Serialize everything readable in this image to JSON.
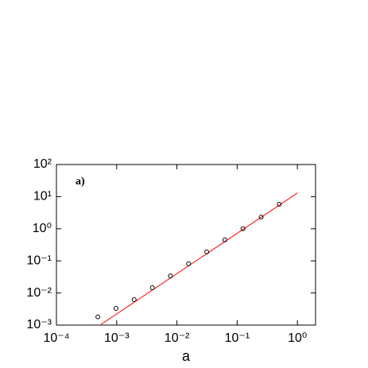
{
  "chart_data": {
    "type": "scatter",
    "x_label": "a",
    "annotation": "a)",
    "log_x": true,
    "log_y": true,
    "xlim": [
      0.0001,
      2
    ],
    "ylim": [
      0.001,
      100
    ],
    "xticks": [
      {
        "value": 0.0001,
        "label": "10⁻⁴"
      },
      {
        "value": 0.001,
        "label": "10⁻³"
      },
      {
        "value": 0.01,
        "label": "10⁻²"
      },
      {
        "value": 0.1,
        "label": "10⁻¹"
      },
      {
        "value": 1,
        "label": "10⁰"
      }
    ],
    "yticks": [
      {
        "value": 0.001,
        "label": "10⁻³"
      },
      {
        "value": 0.01,
        "label": "10⁻²"
      },
      {
        "value": 0.1,
        "label": "10⁻¹"
      },
      {
        "value": 1,
        "label": "10⁰"
      },
      {
        "value": 10,
        "label": "10¹"
      },
      {
        "value": 100,
        "label": "10²"
      }
    ],
    "points": {
      "color": "#000000",
      "x": [
        0.000488,
        0.000977,
        0.00195,
        0.00391,
        0.00781,
        0.0156,
        0.03125,
        0.0625,
        0.125,
        0.25,
        0.5
      ],
      "y": [
        0.0018,
        0.0033,
        0.0062,
        0.0146,
        0.034,
        0.081,
        0.19,
        0.45,
        1.0,
        2.3,
        5.8
      ]
    },
    "fit_line": {
      "color": "#ff0000",
      "x": [
        0.00055,
        1.0
      ],
      "y": [
        0.00105,
        13
      ]
    }
  }
}
